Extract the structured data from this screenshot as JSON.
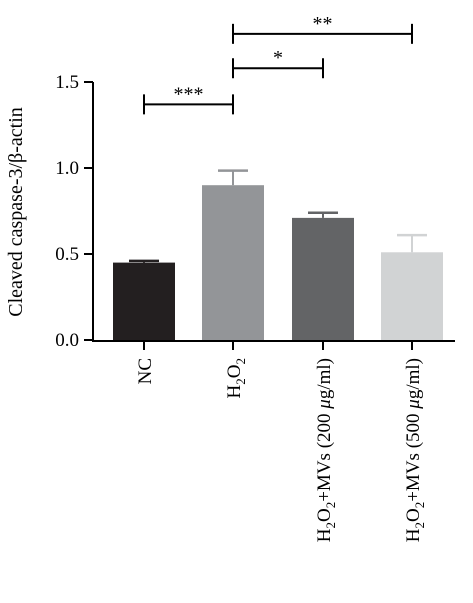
{
  "chart_data": {
    "type": "bar",
    "ylabel": "Cleaved caspase-3/β-actin",
    "ylim": [
      0,
      1.5
    ],
    "yticks": [
      "0.0",
      "0.5",
      "1.0",
      "1.5"
    ],
    "grid": false,
    "categories": [
      "NC",
      "H2O2",
      "H2O2+MVs (200 μg/ml)",
      "H2O2+MVs (500 μg/ml)"
    ],
    "values": [
      0.45,
      0.9,
      0.71,
      0.51
    ],
    "errors": [
      0.01,
      0.085,
      0.03,
      0.1
    ],
    "colors": [
      "#231f20",
      "#939598",
      "#636466",
      "#d1d3d4"
    ],
    "significance": [
      {
        "from": 0,
        "to": 1,
        "label": "***",
        "y": 1.37
      },
      {
        "from": 1,
        "to": 2,
        "label": "*",
        "y": 1.58
      },
      {
        "from": 1,
        "to": 3,
        "label": "**",
        "y": 1.78
      }
    ]
  }
}
